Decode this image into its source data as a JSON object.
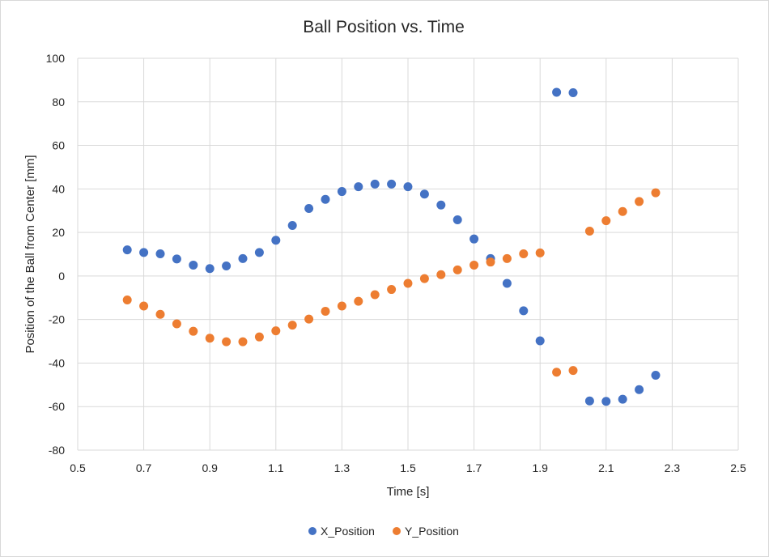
{
  "chart_data": {
    "type": "scatter",
    "title": "Ball Position vs. Time",
    "xlabel": "Time [s]",
    "ylabel": "Position of the Ball from Center [mm]",
    "xlim": [
      0.5,
      2.5
    ],
    "ylim": [
      -80,
      100
    ],
    "x_ticks": [
      "0.5",
      "0.7",
      "0.9",
      "1.1",
      "1.3",
      "1.5",
      "1.7",
      "1.9",
      "2.1",
      "2.3",
      "2.5"
    ],
    "y_ticks": [
      "100",
      "80",
      "60",
      "40",
      "20",
      "0",
      "-20",
      "-40",
      "-60",
      "-80"
    ],
    "grid": true,
    "legend_position": "bottom",
    "series": [
      {
        "name": "X_Position",
        "color": "#4472c4",
        "points": [
          [
            0.65,
            12
          ],
          [
            0.7,
            10.8
          ],
          [
            0.75,
            10.2
          ],
          [
            0.8,
            7.8
          ],
          [
            0.85,
            5
          ],
          [
            0.9,
            3.4
          ],
          [
            0.95,
            4.6
          ],
          [
            1.0,
            8
          ],
          [
            1.05,
            10.8
          ],
          [
            1.1,
            16.4
          ],
          [
            1.15,
            23.2
          ],
          [
            1.2,
            31
          ],
          [
            1.25,
            35.2
          ],
          [
            1.3,
            38.8
          ],
          [
            1.35,
            41
          ],
          [
            1.4,
            42.2
          ],
          [
            1.45,
            42.2
          ],
          [
            1.5,
            41
          ],
          [
            1.55,
            37.6
          ],
          [
            1.6,
            32.6
          ],
          [
            1.65,
            25.8
          ],
          [
            1.7,
            17
          ],
          [
            1.75,
            8
          ],
          [
            1.8,
            -3.4
          ],
          [
            1.85,
            -16
          ],
          [
            1.9,
            -29.8
          ],
          [
            1.95,
            84.4
          ],
          [
            2.0,
            84.2
          ],
          [
            2.05,
            -57.4
          ],
          [
            2.1,
            -57.6
          ],
          [
            2.15,
            -56.6
          ],
          [
            2.2,
            -52.2
          ],
          [
            2.25,
            -45.6
          ]
        ]
      },
      {
        "name": "Y_Position",
        "color": "#ed7d31",
        "points": [
          [
            0.65,
            -11
          ],
          [
            0.7,
            -13.8
          ],
          [
            0.75,
            -17.6
          ],
          [
            0.8,
            -22
          ],
          [
            0.85,
            -25.4
          ],
          [
            0.9,
            -28.6
          ],
          [
            0.95,
            -30.2
          ],
          [
            1.0,
            -30.2
          ],
          [
            1.05,
            -28
          ],
          [
            1.1,
            -25.2
          ],
          [
            1.15,
            -22.6
          ],
          [
            1.2,
            -19.8
          ],
          [
            1.25,
            -16.2
          ],
          [
            1.3,
            -13.8
          ],
          [
            1.35,
            -11.6
          ],
          [
            1.4,
            -8.6
          ],
          [
            1.45,
            -6.2
          ],
          [
            1.5,
            -3.4
          ],
          [
            1.55,
            -1.2
          ],
          [
            1.6,
            0.6
          ],
          [
            1.65,
            2.8
          ],
          [
            1.7,
            5
          ],
          [
            1.75,
            6.4
          ],
          [
            1.8,
            8
          ],
          [
            1.85,
            10.2
          ],
          [
            1.9,
            10.6
          ],
          [
            1.95,
            -44.2
          ],
          [
            2.0,
            -43.4
          ],
          [
            2.05,
            20.6
          ],
          [
            2.1,
            25.4
          ],
          [
            2.15,
            29.6
          ],
          [
            2.2,
            34.2
          ],
          [
            2.25,
            38.2
          ]
        ]
      }
    ]
  }
}
